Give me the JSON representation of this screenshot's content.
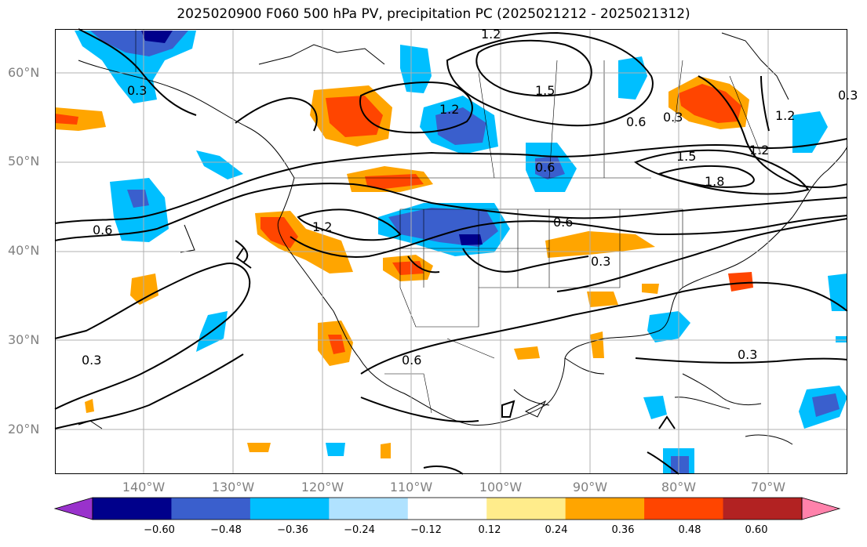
{
  "title": "2025020900 F060 500 hPa PV, precipitation PC (2025021212 - 2025021312)",
  "lat_labels": [
    "60°N",
    "50°N",
    "40°N",
    "30°N",
    "20°N"
  ],
  "lon_labels": [
    "140°W",
    "130°W",
    "120°W",
    "110°W",
    "100°W",
    "90°W",
    "80°W",
    "70°W"
  ],
  "colorbar": {
    "ticks": [
      "−0.60",
      "−0.48",
      "−0.36",
      "−0.24",
      "−0.12",
      "0.12",
      "0.24",
      "0.36",
      "0.48",
      "0.60"
    ],
    "colors": [
      "#9932cc",
      "#00008b",
      "#3a5fcd",
      "#00bfff",
      "#b0e2ff",
      "#ffffff",
      "#ffec8b",
      "#ffa500",
      "#ff4500",
      "#b22222",
      "#ff82ab"
    ]
  },
  "contour_labels": [
    "1.2",
    "1.5",
    "1.2",
    "0.3",
    "0.6",
    "0.3",
    "1.5",
    "1.8",
    "1.2",
    "0.6",
    "1.2",
    "0.6",
    "0.6",
    "0.3",
    "0.3",
    "0.6",
    "0.3",
    "0.3",
    "1.2"
  ],
  "colors": {
    "lat_lon_label": "#808080",
    "gridline": "#b0b0b0",
    "contour": "#000000"
  }
}
